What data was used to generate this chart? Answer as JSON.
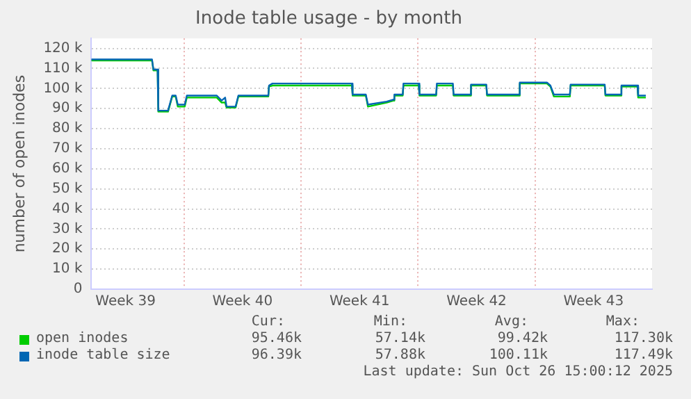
{
  "chart_data": {
    "type": "line",
    "title": "Inode table usage - by month",
    "ylabel": "number of open inodes",
    "x": [
      "2025-09-23T11:00",
      "2025-09-27T02:00",
      "2025-09-27T04:00",
      "2025-09-27T10:00",
      "2025-09-27T11:00",
      "2025-09-28T01:00",
      "2025-09-28T07:00",
      "2025-09-28T12:00",
      "2025-09-28T15:00",
      "2025-09-29T01:00",
      "2025-09-29T04:00",
      "2025-09-30T23:00",
      "2025-10-01T06:00",
      "2025-10-01T11:00",
      "2025-10-01T13:00",
      "2025-10-02T02:00",
      "2025-10-02T06:00",
      "2025-10-04T01:00",
      "2025-10-04T02:00",
      "2025-10-04T07:00",
      "2025-10-07T22:00",
      "2025-10-09T01:00",
      "2025-10-09T02:00",
      "2025-10-09T21:00",
      "2025-10-10T00:00",
      "2025-10-11T03:00",
      "2025-10-11T13:00",
      "2025-10-11T14:00",
      "2025-10-12T02:00",
      "2025-10-12T03:00",
      "2025-10-13T01:00",
      "2025-10-13T02:00",
      "2025-10-14T02:00",
      "2025-10-14T03:00",
      "2025-10-15T02:00",
      "2025-10-15T03:00",
      "2025-10-16T03:00",
      "2025-10-16T04:00",
      "2025-10-17T02:00",
      "2025-10-17T03:00",
      "2025-10-19T01:00",
      "2025-10-19T02:00",
      "2025-10-20T17:00",
      "2025-10-20T22:00",
      "2025-10-21T03:00",
      "2025-10-22T02:00",
      "2025-10-22T03:00",
      "2025-10-24T04:00",
      "2025-10-24T05:00",
      "2025-10-25T03:00",
      "2025-10-25T04:00",
      "2025-10-26T03:00",
      "2025-10-26T04:00",
      "2025-10-26T15:00"
    ],
    "series": [
      {
        "name": "open inodes",
        "color": "#00cc00",
        "values": [
          114000,
          114000,
          109000,
          109000,
          88500,
          88500,
          96000,
          96000,
          91000,
          91000,
          95500,
          95500,
          93000,
          93000,
          90500,
          90500,
          96000,
          96000,
          101000,
          101500,
          101500,
          101500,
          96500,
          96500,
          91000,
          93000,
          94000,
          96500,
          96500,
          101500,
          101500,
          96500,
          96500,
          101500,
          101500,
          96500,
          96500,
          101500,
          101500,
          96500,
          96500,
          102500,
          102500,
          101000,
          96000,
          96000,
          101500,
          101500,
          96500,
          96500,
          101000,
          101000,
          95500,
          95500
        ]
      },
      {
        "name": "inode table size",
        "color": "#0066b3",
        "values": [
          114500,
          114500,
          109500,
          109500,
          89000,
          89000,
          96500,
          96500,
          92000,
          92000,
          96500,
          96500,
          94000,
          95500,
          91000,
          91000,
          96500,
          96500,
          101500,
          102500,
          102500,
          102500,
          97000,
          97000,
          92000,
          93500,
          94500,
          97000,
          97000,
          102500,
          102500,
          97000,
          97000,
          102500,
          102500,
          97000,
          97000,
          102000,
          102000,
          97000,
          97000,
          103000,
          103000,
          101500,
          97000,
          97000,
          102000,
          102000,
          97000,
          97000,
          101500,
          101500,
          96500,
          96500
        ]
      }
    ],
    "xlim": [
      "2025-09-23T10:00",
      "2025-10-27T00:00"
    ],
    "xticks": [
      {
        "value": "2025-09-25T12:00",
        "label": "Week 39"
      },
      {
        "value": "2025-09-29",
        "label": null
      },
      {
        "value": "2025-10-02T12:00",
        "label": "Week 40"
      },
      {
        "value": "2025-10-06",
        "label": null
      },
      {
        "value": "2025-10-09T12:00",
        "label": "Week 41"
      },
      {
        "value": "2025-10-13",
        "label": null
      },
      {
        "value": "2025-10-16T12:00",
        "label": "Week 42"
      },
      {
        "value": "2025-10-20",
        "label": null
      },
      {
        "value": "2025-10-23T12:00",
        "label": "Week 43"
      }
    ],
    "ylim": [
      0,
      125000
    ],
    "yticks": [
      {
        "value": 0,
        "label": "0"
      },
      {
        "value": 10000,
        "label": "10 k"
      },
      {
        "value": 20000,
        "label": "20 k"
      },
      {
        "value": 30000,
        "label": "30 k"
      },
      {
        "value": 40000,
        "label": "40 k"
      },
      {
        "value": 50000,
        "label": "50 k"
      },
      {
        "value": 60000,
        "label": "60 k"
      },
      {
        "value": 70000,
        "label": "70 k"
      },
      {
        "value": 80000,
        "label": "80 k"
      },
      {
        "value": 90000,
        "label": "90 k"
      },
      {
        "value": 100000,
        "label": "100 k"
      },
      {
        "value": 110000,
        "label": "110 k"
      },
      {
        "value": 120000,
        "label": "120 k"
      }
    ],
    "grid": true,
    "legend": "bottom",
    "marker": "none",
    "line_style": "solid",
    "annotations": [
      "Cur:",
      "Min:",
      "Avg:",
      "Max:",
      "95.46k",
      "57.14k",
      "99.42k",
      "117.30k",
      "96.39k",
      "57.88k",
      "100.11k",
      "117.49k",
      "Last update: Sun Oct 26 15:00:12 2025"
    ]
  }
}
